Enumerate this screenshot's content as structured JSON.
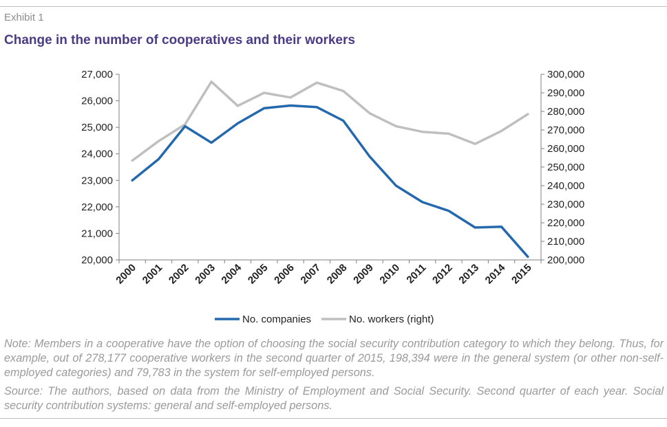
{
  "header": {
    "exhibit": "Exhibit 1",
    "title": "Change in the number of cooperatives and their workers"
  },
  "chart_data": {
    "type": "line",
    "x": [
      "2000",
      "2001",
      "2002",
      "2003",
      "2004",
      "2005",
      "2006",
      "2007",
      "2008",
      "2009",
      "2010",
      "2011",
      "2012",
      "2013",
      "2014",
      "2015"
    ],
    "series": [
      {
        "name": "No. companies",
        "axis": "left",
        "color": "#2468ad",
        "values": [
          23000,
          23800,
          25040,
          24420,
          25150,
          25720,
          25820,
          25760,
          25250,
          23900,
          22800,
          22180,
          21850,
          21220,
          21250,
          20120
        ]
      },
      {
        "name": "No. workers (right)",
        "axis": "right",
        "color": "#bfbfbf",
        "values": [
          253500,
          264000,
          273000,
          296000,
          283000,
          290000,
          287500,
          295500,
          291000,
          279000,
          272000,
          269000,
          268000,
          262500,
          269500,
          278500
        ]
      }
    ],
    "left_axis": {
      "min": 20000,
      "max": 27000,
      "step": 1000,
      "tick_labels": [
        "20,000",
        "21,000",
        "22,000",
        "23,000",
        "24,000",
        "25,000",
        "26,000",
        "27,000"
      ]
    },
    "right_axis": {
      "min": 200000,
      "max": 300000,
      "step": 10000,
      "tick_labels": [
        "200,000",
        "210,000",
        "220,000",
        "230,000",
        "240,000",
        "250,000",
        "260,000",
        "270,000",
        "280,000",
        "290,000",
        "300,000"
      ]
    },
    "grid": false,
    "legend_position": "bottom"
  },
  "notes": {
    "note": "Note: Members in a cooperative have the option of choosing the social security contribution category to which they belong. Thus, for example, out of 278,177 cooperative workers in the second quarter of 2015, 198,394 were in the general system (or other non-self-employed categories) and 79,783 in the system for self-employed persons.",
    "source": "Source: The authors, based on data from the Ministry of Employment and Social Security. Second quarter of each year. Social security contribution systems: general and self-employed persons."
  }
}
